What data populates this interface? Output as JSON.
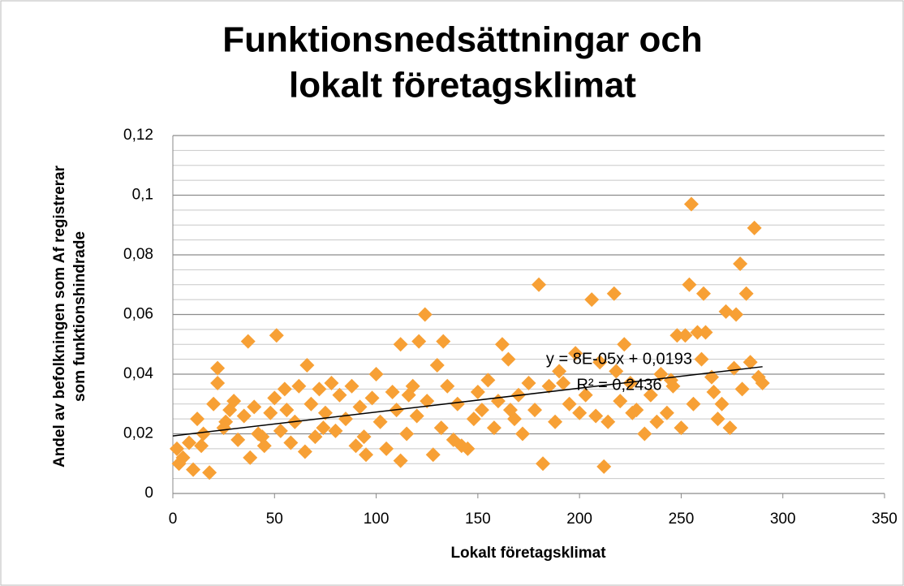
{
  "chart_data": {
    "type": "scatter",
    "title": [
      "Funktionsnedsättningar och",
      "lokalt företagsklimat"
    ],
    "x_label": "Lokalt företagsklimat",
    "y_label": [
      "Andel av befolkningen som Af registrerar",
      "som funktionshindrade"
    ],
    "annotations": [
      "y = 8E-05x + 0,0193",
      "R² = 0,2436"
    ],
    "color": "#f7a035",
    "xlim": [
      0,
      350
    ],
    "xticks": [
      0,
      50,
      100,
      150,
      200,
      250,
      300,
      350
    ],
    "ylim": [
      0,
      0.12
    ],
    "yticks": [
      0,
      {
        "value": 0.02,
        "label": "0,02"
      },
      {
        "value": 0.04,
        "label": "0,04"
      },
      {
        "value": 0.06,
        "label": "0,06"
      },
      {
        "value": 0.08,
        "label": "0,08"
      },
      {
        "value": 0.1,
        "label": "0,1"
      },
      {
        "value": 0.12,
        "label": "0,12"
      }
    ],
    "y_minor_grid": [
      0.005,
      0.01,
      0.015,
      0.025,
      0.03,
      0.035,
      0.045,
      0.05,
      0.055,
      0.065,
      0.07,
      0.075,
      0.085,
      0.09,
      0.095,
      0.105,
      0.11,
      0.115
    ],
    "grid": true,
    "trendline": {
      "x": [
        0,
        290
      ],
      "y": [
        0.0193,
        0.0425
      ],
      "color": "#000000"
    },
    "x": [
      255,
      286,
      279,
      180,
      254,
      282,
      217,
      261,
      206,
      124,
      277,
      272,
      51,
      37,
      112,
      121,
      133,
      162,
      222,
      248,
      252,
      262,
      258,
      22,
      66,
      100,
      130,
      182,
      112,
      212,
      18,
      3,
      10,
      2,
      5,
      8,
      12,
      15,
      20,
      22,
      25,
      28,
      30,
      32,
      35,
      38,
      40,
      42,
      45,
      48,
      50,
      53,
      55,
      58,
      60,
      62,
      65,
      68,
      70,
      72,
      75,
      78,
      80,
      82,
      85,
      88,
      90,
      92,
      95,
      98,
      102,
      105,
      108,
      110,
      115,
      118,
      120,
      125,
      128,
      132,
      135,
      138,
      140,
      145,
      148,
      150,
      152,
      155,
      158,
      160,
      165,
      168,
      170,
      172,
      175,
      178,
      185,
      188,
      190,
      195,
      198,
      200,
      203,
      208,
      210,
      214,
      218,
      220,
      225,
      228,
      232,
      235,
      238,
      240,
      243,
      245,
      250,
      256,
      260,
      265,
      268,
      270,
      274,
      276,
      280,
      284,
      288,
      290,
      14,
      26,
      44,
      56,
      74,
      94,
      116,
      142,
      166,
      192,
      226,
      246,
      266
    ],
    "y": [
      0.097,
      0.089,
      0.077,
      0.07,
      0.07,
      0.067,
      0.067,
      0.067,
      0.065,
      0.06,
      0.06,
      0.061,
      0.053,
      0.051,
      0.05,
      0.051,
      0.051,
      0.05,
      0.05,
      0.053,
      0.053,
      0.054,
      0.054,
      0.042,
      0.043,
      0.04,
      0.043,
      0.01,
      0.011,
      0.009,
      0.007,
      0.01,
      0.008,
      0.015,
      0.012,
      0.017,
      0.025,
      0.02,
      0.03,
      0.037,
      0.022,
      0.028,
      0.031,
      0.018,
      0.026,
      0.012,
      0.029,
      0.02,
      0.016,
      0.027,
      0.032,
      0.021,
      0.035,
      0.017,
      0.024,
      0.036,
      0.014,
      0.03,
      0.019,
      0.035,
      0.027,
      0.037,
      0.021,
      0.033,
      0.025,
      0.036,
      0.016,
      0.029,
      0.013,
      0.032,
      0.024,
      0.015,
      0.034,
      0.028,
      0.02,
      0.036,
      0.026,
      0.031,
      0.013,
      0.022,
      0.036,
      0.018,
      0.03,
      0.015,
      0.025,
      0.034,
      0.028,
      0.038,
      0.022,
      0.031,
      0.045,
      0.025,
      0.033,
      0.02,
      0.037,
      0.028,
      0.036,
      0.024,
      0.041,
      0.03,
      0.047,
      0.027,
      0.033,
      0.026,
      0.044,
      0.024,
      0.041,
      0.031,
      0.037,
      0.028,
      0.02,
      0.033,
      0.024,
      0.04,
      0.027,
      0.038,
      0.022,
      0.03,
      0.045,
      0.039,
      0.025,
      0.03,
      0.022,
      0.042,
      0.035,
      0.044,
      0.039,
      0.037,
      0.016,
      0.024,
      0.019,
      0.028,
      0.022,
      0.019,
      0.033,
      0.016,
      0.028,
      0.037,
      0.027,
      0.036,
      0.034
    ]
  }
}
